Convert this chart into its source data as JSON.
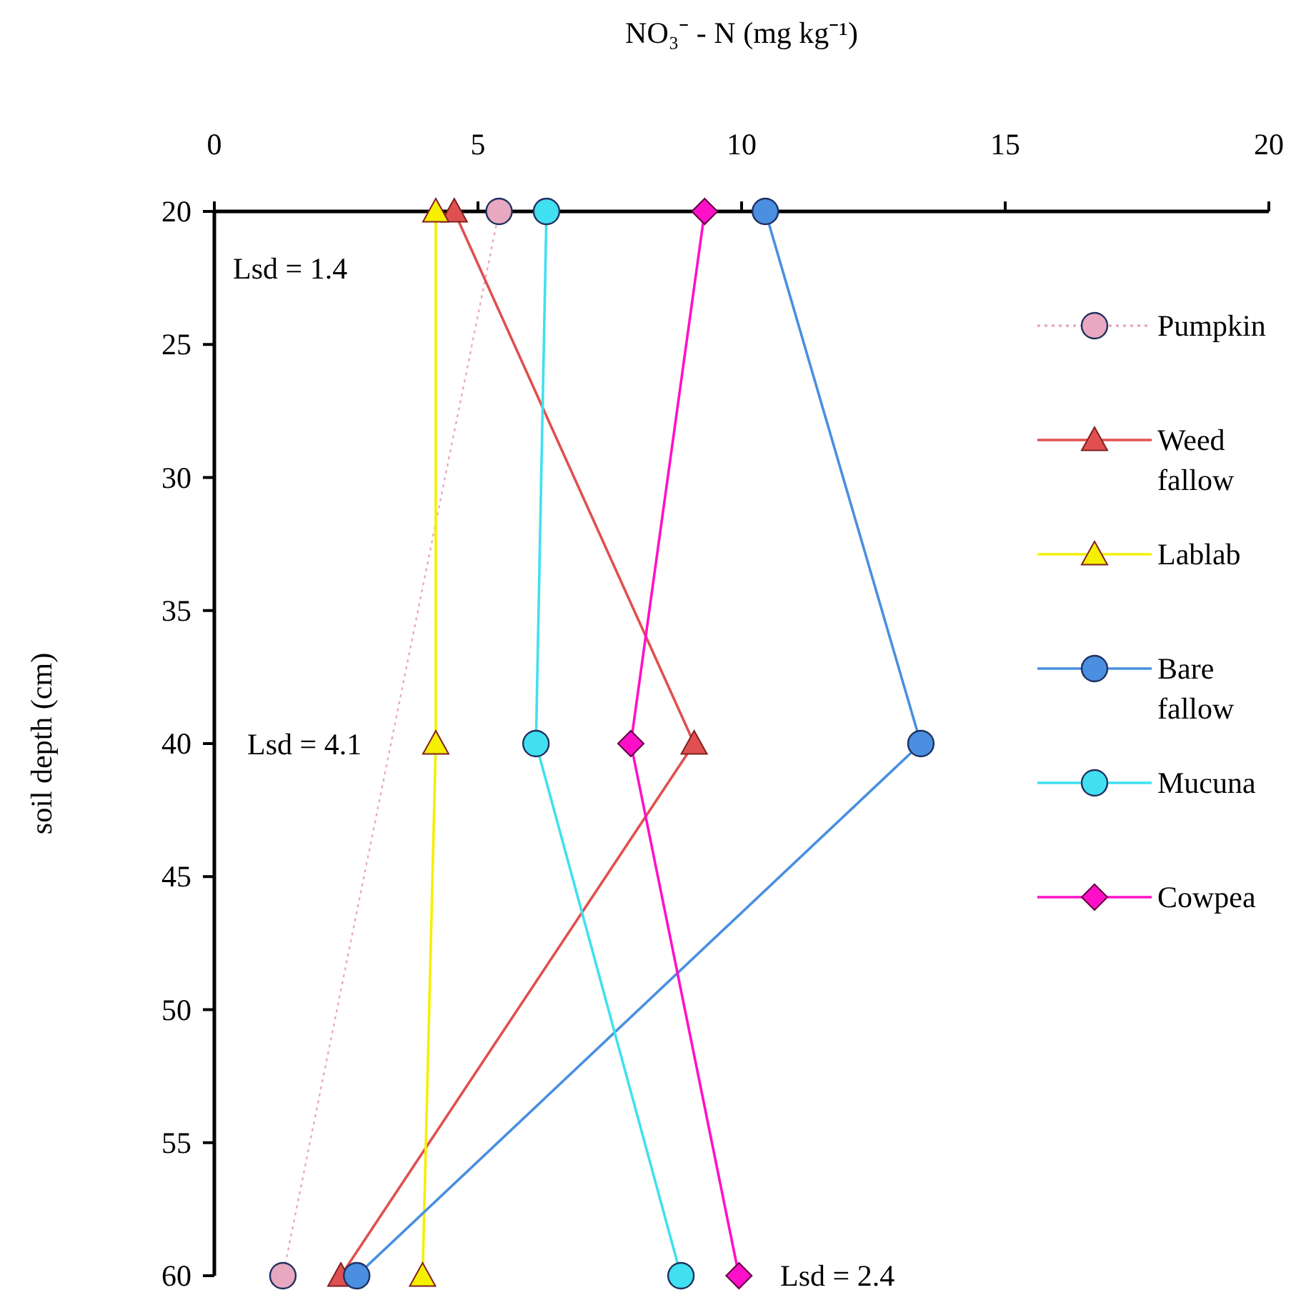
{
  "chart_data": {
    "type": "line",
    "xlabel": "NO₃⁻ - N (mg kg⁻¹)",
    "ylabel": "soil depth (cm)",
    "xlim": [
      0,
      20
    ],
    "xticks": [
      0,
      5,
      10,
      15,
      20
    ],
    "ylim": [
      60,
      20
    ],
    "yticks": [
      20,
      25,
      30,
      35,
      40,
      45,
      50,
      55,
      60
    ],
    "grid": false,
    "legend": "right",
    "series": [
      {
        "name": "Pumpkin",
        "color": "#e8a8c0",
        "marker": "circle",
        "line_style": "dotted",
        "x": [
          5.4,
          1.3
        ],
        "values": [
          20,
          60
        ]
      },
      {
        "name": "Weed fallow",
        "color": "#e05050",
        "marker": "triangle",
        "x": [
          4.55,
          9.1,
          2.4
        ],
        "values": [
          20,
          40,
          60
        ]
      },
      {
        "name": "Lablab",
        "color": "#f5f000",
        "marker": "triangle",
        "x": [
          4.2,
          4.2,
          3.95
        ],
        "values": [
          20,
          40,
          60
        ]
      },
      {
        "name": "Bare fallow",
        "color": "#4a8fe0",
        "marker": "circle",
        "x": [
          10.45,
          13.4,
          2.7
        ],
        "values": [
          20,
          40,
          60
        ]
      },
      {
        "name": "Mucuna",
        "color": "#40e0f0",
        "marker": "circle",
        "x": [
          6.3,
          6.1,
          8.85
        ],
        "values": [
          20,
          40,
          60
        ]
      },
      {
        "name": "Cowpea",
        "color": "#ff10c8",
        "marker": "diamond",
        "x": [
          9.3,
          7.9,
          9.95
        ],
        "values": [
          20,
          40,
          60
        ]
      }
    ],
    "annotations": [
      "Lsd = 1.4",
      "Lsd = 4.1",
      "Lsd = 2.4"
    ]
  }
}
